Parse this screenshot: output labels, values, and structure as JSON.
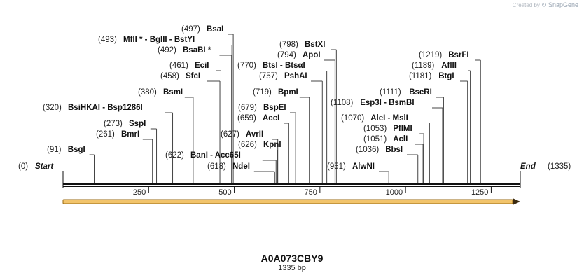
{
  "brand": {
    "created_by": "Created by",
    "logo": "SnapGene"
  },
  "sequence": {
    "name": "A0A073CBY9",
    "length_label": "1335 bp"
  },
  "map": {
    "length": 1335,
    "start_label": "Start",
    "start_pos": "(0)",
    "end_label": "End",
    "end_pos": "(1335)",
    "ticks": [
      "250",
      "500",
      "750",
      "1000",
      "1250"
    ],
    "tick_values": [
      250,
      500,
      750,
      1000,
      1250
    ],
    "feature_color": "#f2c46b",
    "sites": [
      {
        "pos": "(91)",
        "name": "BsgI",
        "site": 91
      },
      {
        "pos": "(261)",
        "name": "BmrI",
        "site": 261
      },
      {
        "pos": "(273)",
        "name": "SspI",
        "site": 273
      },
      {
        "pos": "(320)",
        "name": "BsiHKAI  - Bsp1286I",
        "site": 320
      },
      {
        "pos": "(380)",
        "name": "BsmI",
        "site": 380
      },
      {
        "pos": "(458)",
        "name": "SfcI",
        "site": 458
      },
      {
        "pos": "(461)",
        "name": "EciI",
        "site": 461
      },
      {
        "pos": "(492)",
        "name": "BsaBI *",
        "site": 492
      },
      {
        "pos": "(493)",
        "name": "MflI * - BglII  - BstYI",
        "site": 493
      },
      {
        "pos": "(497)",
        "name": "BsaI",
        "site": 497
      },
      {
        "pos": "(618)",
        "name": "NdeI",
        "site": 618
      },
      {
        "pos": "(622)",
        "name": "BanI  - Acc65I",
        "site": 622
      },
      {
        "pos": "(626)",
        "name": "KpnI",
        "site": 626
      },
      {
        "pos": "(627)",
        "name": "AvrII",
        "site": 627
      },
      {
        "pos": "(659)",
        "name": "AccI",
        "site": 659
      },
      {
        "pos": "(679)",
        "name": "BspEI",
        "site": 679
      },
      {
        "pos": "(719)",
        "name": "BpmI",
        "site": 719
      },
      {
        "pos": "(757)",
        "name": "PshAI",
        "site": 757
      },
      {
        "pos": "(770)",
        "name": "BtsI  - BtsαI",
        "site": 770
      },
      {
        "pos": "(794)",
        "name": "ApoI",
        "site": 794
      },
      {
        "pos": "(798)",
        "name": "BstXI",
        "site": 798
      },
      {
        "pos": "(951)",
        "name": "AlwNI",
        "site": 951
      },
      {
        "pos": "(1036)",
        "name": "BbsI",
        "site": 1036
      },
      {
        "pos": "(1051)",
        "name": "AclI",
        "site": 1051
      },
      {
        "pos": "(1053)",
        "name": "PflMI",
        "site": 1053
      },
      {
        "pos": "(1070)",
        "name": "AleI  - MslI",
        "site": 1070
      },
      {
        "pos": "(1108)",
        "name": "Esp3I  - BsmBI",
        "site": 1108
      },
      {
        "pos": "(1111)",
        "name": "BseRI",
        "site": 1111
      },
      {
        "pos": "(1181)",
        "name": "BtgI",
        "site": 1181
      },
      {
        "pos": "(1189)",
        "name": "AflII",
        "site": 1189
      },
      {
        "pos": "(1219)",
        "name": "BsrFI",
        "site": 1219
      }
    ]
  }
}
